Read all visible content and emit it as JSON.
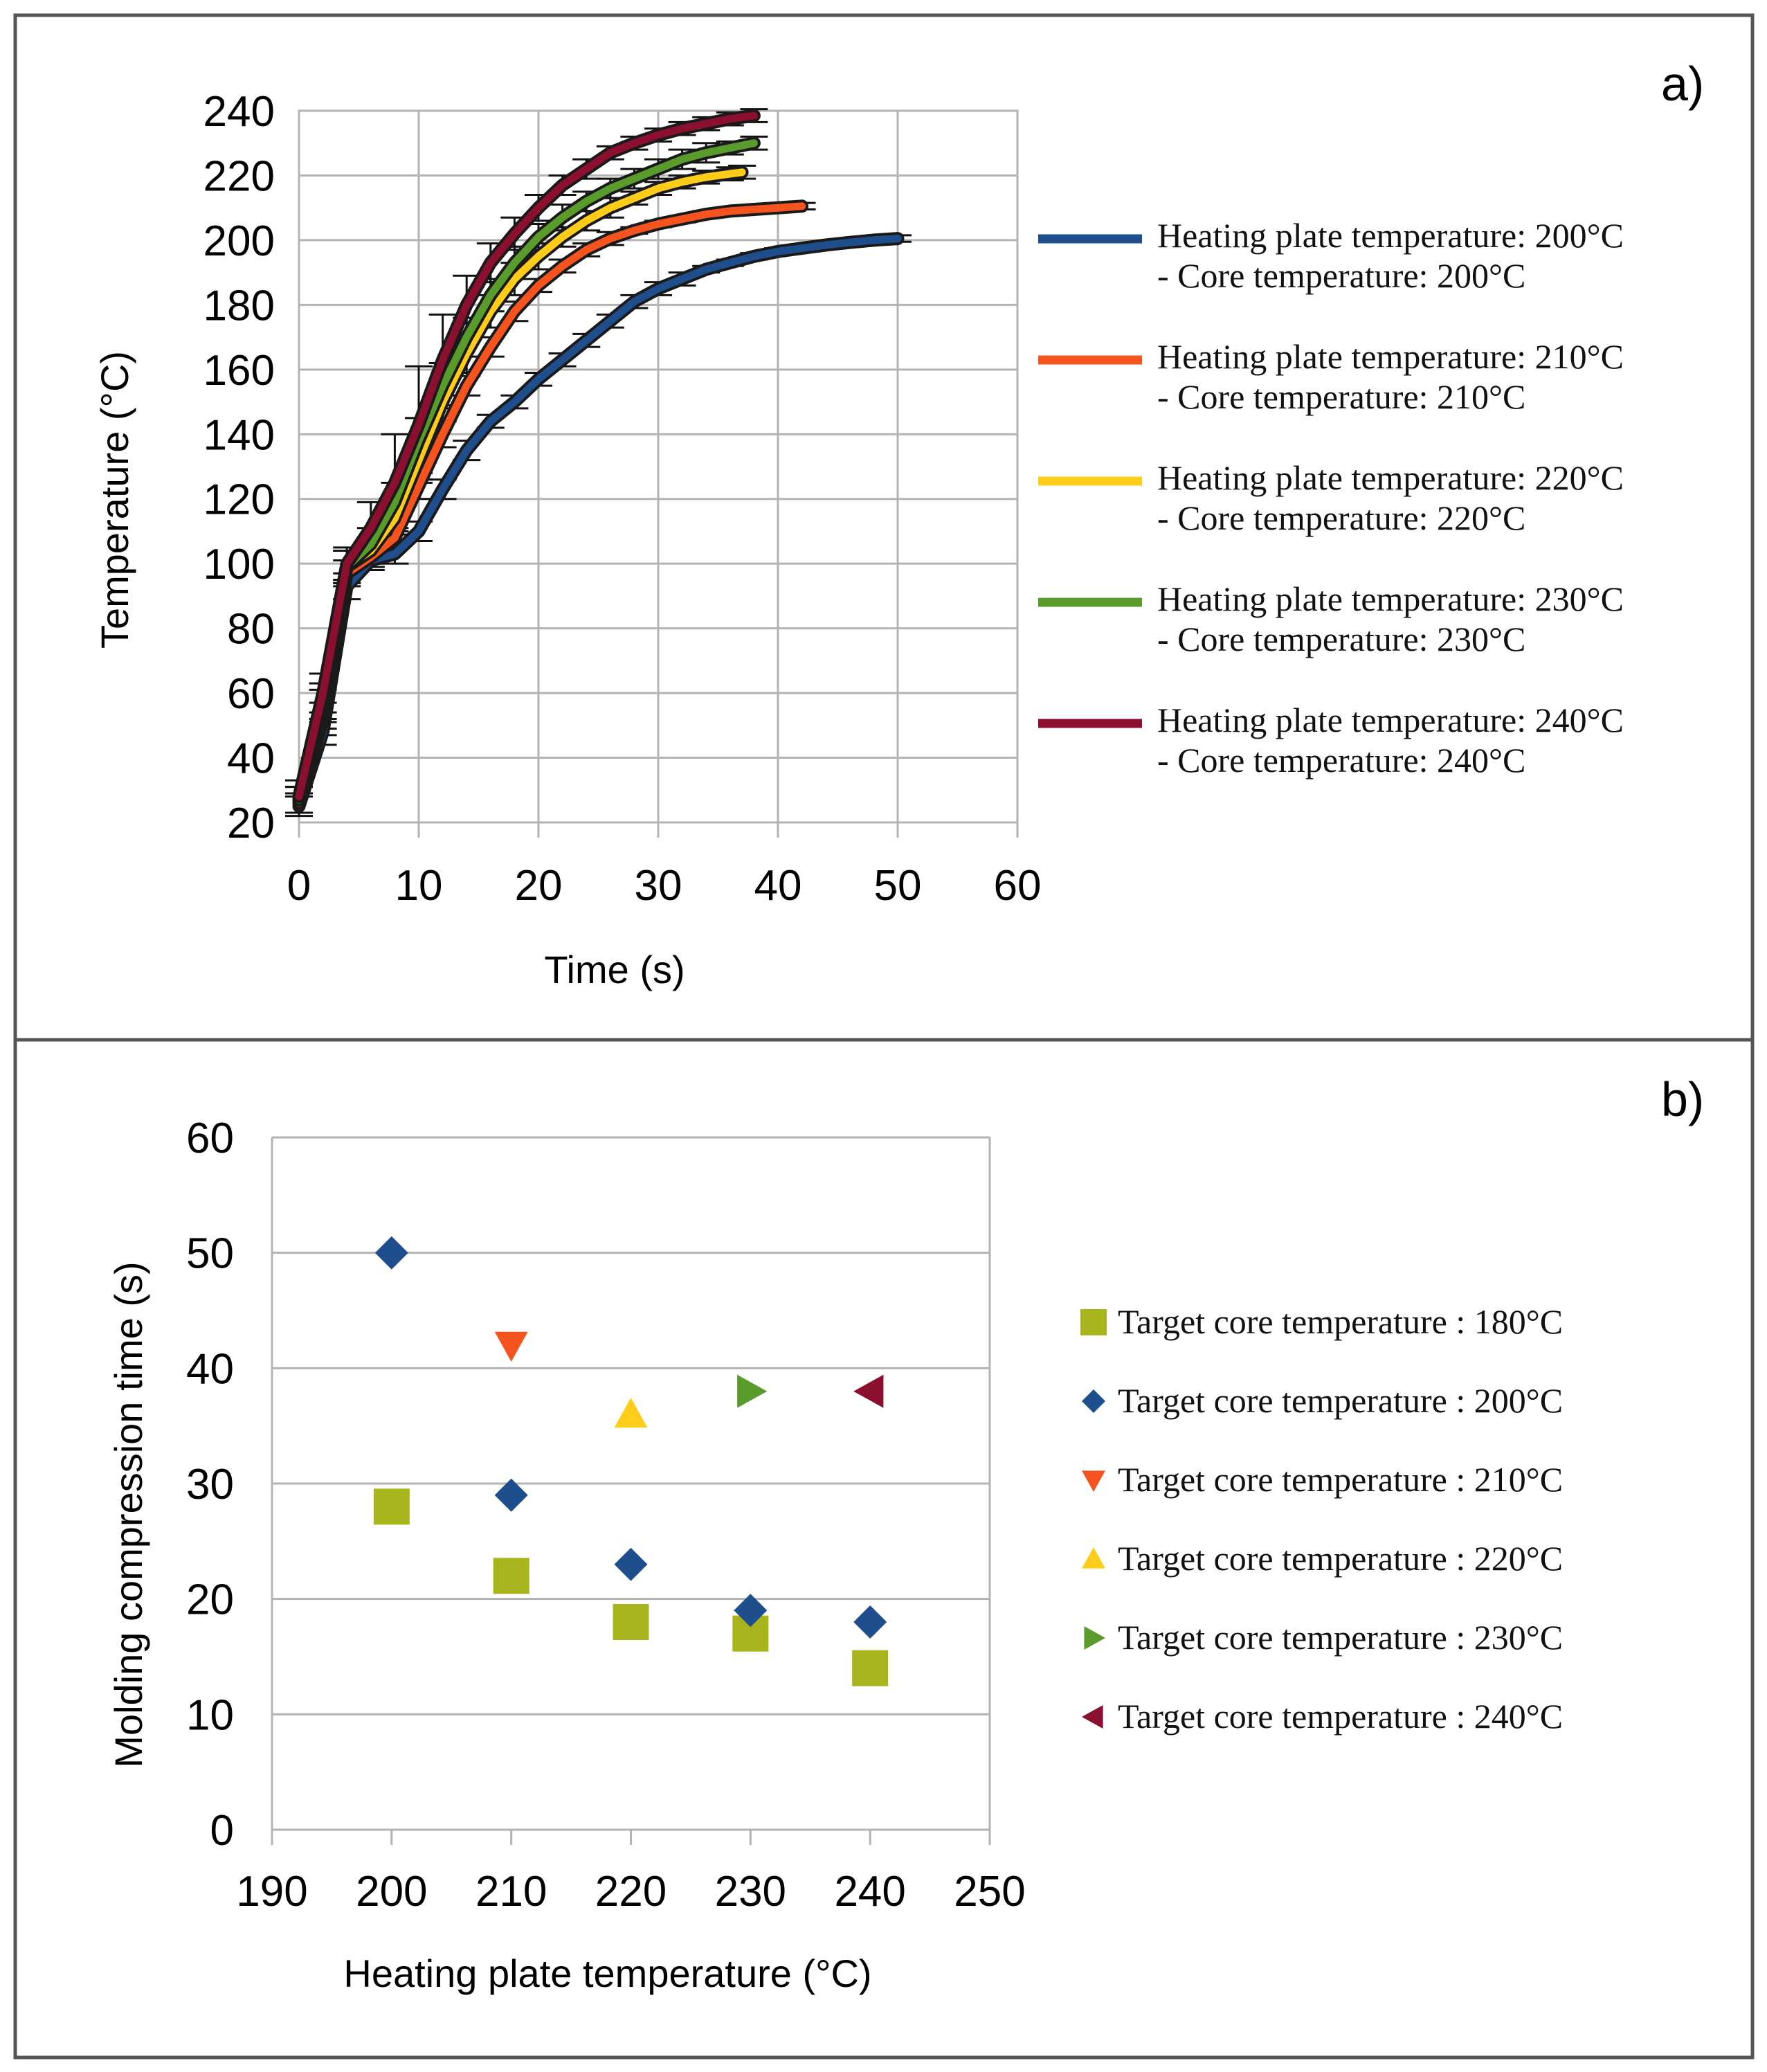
{
  "figure": {
    "panel_a_label": "a)",
    "panel_b_label": "b)"
  },
  "chart_data": [
    {
      "type": "line",
      "panel": "a)",
      "xlabel": "Time (s)",
      "ylabel": "Temperature (°C)",
      "xlim": [
        0,
        60
      ],
      "ylim": [
        20,
        240
      ],
      "xticks": [
        0,
        10,
        20,
        30,
        40,
        50,
        60
      ],
      "yticks": [
        20,
        40,
        60,
        80,
        100,
        120,
        140,
        160,
        180,
        200,
        220,
        240
      ],
      "grid": true,
      "legend_position": "right",
      "error_bars": true,
      "series": [
        {
          "name": "Heating plate temperature: 200°C - Core temperature: 200°C",
          "legend_line1": "Heating plate temperature: 200°C",
          "legend_line2": "- Core temperature: 200°C",
          "color": "#1f4e8c",
          "x": [
            0,
            2,
            4,
            6,
            8,
            10,
            12,
            14,
            16,
            18,
            20,
            22,
            24,
            26,
            28,
            30,
            32,
            34,
            36,
            38,
            40,
            42,
            44,
            46,
            48,
            50
          ],
          "y": [
            25,
            48,
            93,
            101,
            103,
            110,
            123,
            135,
            144,
            150,
            157,
            163,
            169,
            175,
            181,
            185,
            188,
            191,
            193,
            195,
            196.5,
            197.5,
            198.5,
            199.3,
            200,
            200.5
          ],
          "err": [
            3,
            4,
            4,
            3,
            3,
            3,
            3,
            3,
            2,
            2,
            2,
            2,
            2,
            2,
            2,
            2,
            2,
            1,
            1,
            1,
            1,
            1,
            1,
            1,
            1,
            1
          ]
        },
        {
          "name": "Heating plate temperature: 210°C - Core temperature: 210°C",
          "legend_line1": "Heating plate temperature: 210°C",
          "legend_line2": "- Core temperature: 210°C",
          "color": "#f5541f",
          "x": [
            0,
            2,
            4,
            6,
            8,
            10,
            12,
            14,
            16,
            18,
            20,
            22,
            24,
            26,
            28,
            30,
            32,
            34,
            36,
            38,
            40,
            42
          ],
          "y": [
            26,
            52,
            97,
            102,
            108,
            124,
            140,
            155,
            167,
            178,
            186,
            192,
            197,
            200.5,
            203,
            205,
            206.5,
            208,
            209,
            209.5,
            210,
            210.5
          ],
          "err": [
            3,
            5,
            4,
            3,
            3,
            4,
            4,
            3,
            3,
            3,
            2,
            2,
            2,
            2,
            1,
            1,
            1,
            1,
            1,
            1,
            1,
            1
          ]
        },
        {
          "name": "Heating plate temperature: 220°C - Core temperature: 220°C",
          "legend_line1": "Heating plate temperature: 220°C",
          "legend_line2": "- Core temperature: 220°C",
          "color": "#ffcc1a",
          "x": [
            0,
            2,
            4,
            6,
            8,
            10,
            12,
            14,
            16,
            18,
            20,
            22,
            24,
            26,
            28,
            30,
            32,
            34,
            36,
            37
          ],
          "y": [
            27,
            55,
            99,
            104,
            114,
            132,
            150,
            165,
            178,
            188,
            195,
            201,
            206,
            210,
            213,
            216,
            218,
            219.5,
            220.5,
            221
          ],
          "err": [
            4,
            6,
            5,
            4,
            5,
            6,
            6,
            6,
            5,
            5,
            4,
            3,
            3,
            3,
            2,
            2,
            2,
            2,
            2,
            2
          ]
        },
        {
          "name": "Heating plate temperature: 230°C - Core temperature: 230°C",
          "legend_line1": "Heating plate temperature: 230°C",
          "legend_line2": "- Core temperature: 230°C",
          "color": "#5a9c2c",
          "x": [
            0,
            2,
            4,
            6,
            8,
            10,
            12,
            14,
            16,
            18,
            20,
            22,
            24,
            26,
            28,
            30,
            32,
            34,
            36,
            38
          ],
          "y": [
            27,
            57,
            99,
            106,
            119,
            138,
            155,
            170,
            183,
            193,
            201,
            207,
            212,
            216,
            219,
            222,
            225,
            227,
            228.5,
            230
          ],
          "err": [
            4,
            6,
            5,
            5,
            6,
            7,
            7,
            6,
            5,
            5,
            4,
            4,
            3,
            3,
            3,
            3,
            3,
            3,
            2,
            2
          ]
        },
        {
          "name": "Heating plate temperature: 240°C - Core temperature: 240°C",
          "legend_line1": "Heating plate temperature: 240°C",
          "legend_line2": "- Core temperature: 240°C",
          "color": "#8b0f2e",
          "x": [
            0,
            2,
            4,
            6,
            8,
            10,
            12,
            14,
            16,
            18,
            20,
            22,
            24,
            26,
            28,
            30,
            32,
            34,
            36,
            38
          ],
          "y": [
            28,
            60,
            100,
            111,
            125,
            143,
            163,
            180,
            193,
            202,
            210,
            217,
            222,
            227,
            230,
            232.5,
            234.5,
            236,
            237.5,
            238.5
          ],
          "err": [
            5,
            6,
            5,
            8,
            15,
            18,
            14,
            9,
            6,
            5,
            4,
            3,
            3,
            2,
            2,
            2,
            2,
            2,
            2,
            2
          ]
        }
      ]
    },
    {
      "type": "scatter",
      "panel": "b)",
      "xlabel": "Heating plate temperature (°C)",
      "ylabel": "Molding compression time (s)",
      "xlim": [
        190,
        250
      ],
      "ylim": [
        0,
        60
      ],
      "xticks": [
        190,
        200,
        210,
        220,
        230,
        240,
        250
      ],
      "yticks": [
        0,
        10,
        20,
        30,
        40,
        50,
        60
      ],
      "grid": true,
      "legend_position": "right",
      "series": [
        {
          "name": "Target core temperature : 180°C",
          "marker": "square",
          "color": "#a8b41c",
          "x": [
            200,
            210,
            220,
            230,
            240
          ],
          "y": [
            28,
            22,
            18,
            17,
            14
          ]
        },
        {
          "name": "Target core temperature : 200°C",
          "marker": "diamond",
          "color": "#1f4e8c",
          "x": [
            200,
            210,
            220,
            230,
            240
          ],
          "y": [
            50,
            29,
            23,
            19,
            18
          ]
        },
        {
          "name": "Target core temperature : 210°C",
          "marker": "triangle-down",
          "color": "#f5541f",
          "x": [
            210
          ],
          "y": [
            42
          ]
        },
        {
          "name": "Target core temperature : 220°C",
          "marker": "triangle-up",
          "color": "#ffcc1a",
          "x": [
            220
          ],
          "y": [
            36
          ]
        },
        {
          "name": "Target core temperature : 230°C",
          "marker": "triangle-right",
          "color": "#5a9c2c",
          "x": [
            230
          ],
          "y": [
            38
          ]
        },
        {
          "name": "Target core temperature : 240°C",
          "marker": "triangle-left",
          "color": "#8b0f2e",
          "x": [
            240
          ],
          "y": [
            38
          ]
        }
      ]
    }
  ]
}
